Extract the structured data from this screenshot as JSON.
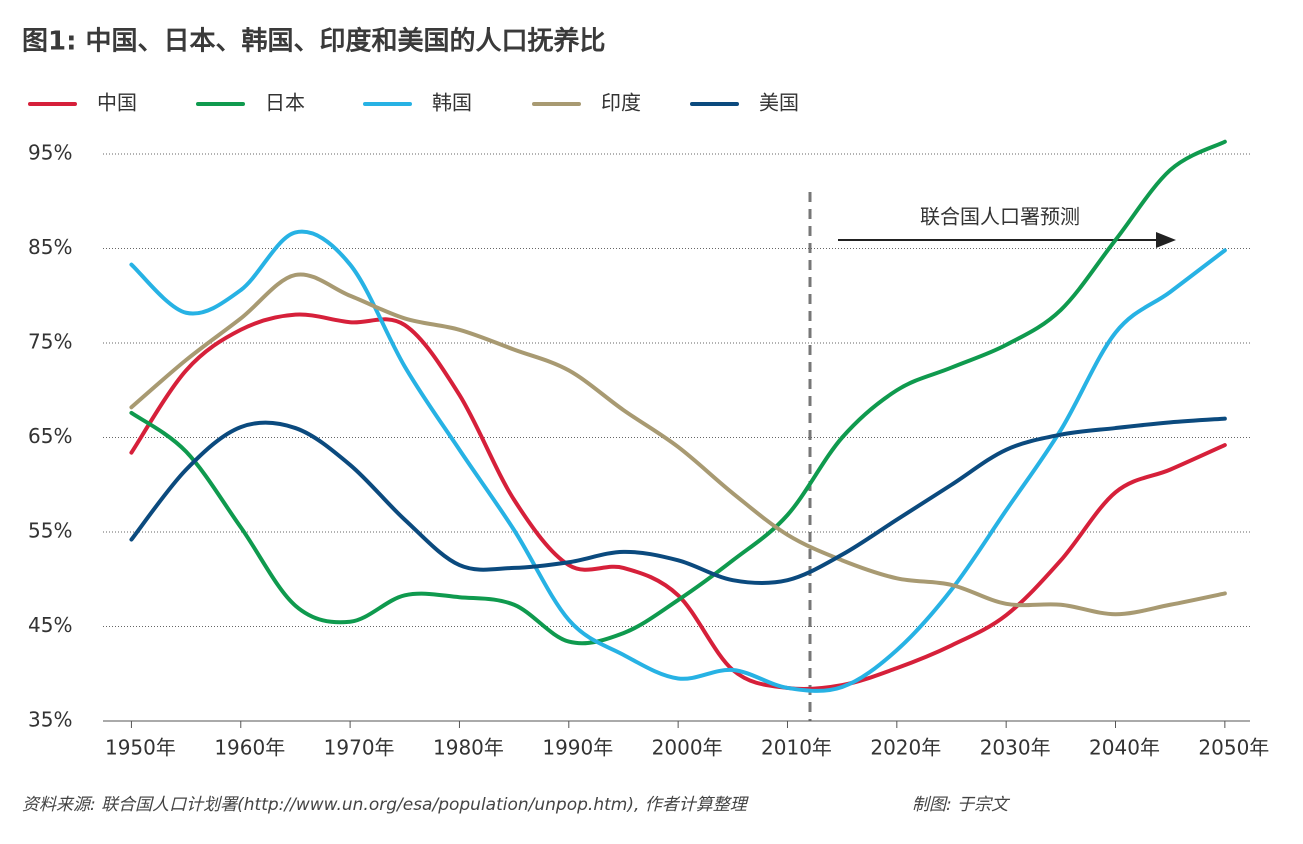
{
  "chart_data": {
    "type": "line",
    "title": "图1: 中国、日本、韩国、印度和美国的人口抚养比",
    "annotation": "联合国人口署预测",
    "source": "资料来源: 联合国人口计划署(http://www.un.org/esa/population/unpop.htm), 作者计算整理",
    "credit": "制图: 于宗文",
    "x": [
      1950,
      1955,
      1960,
      1965,
      1970,
      1975,
      1980,
      1985,
      1990,
      1995,
      2000,
      2005,
      2010,
      2015,
      2020,
      2025,
      2030,
      2035,
      2040,
      2045,
      2050
    ],
    "xlim": [
      1947.4,
      2052.3
    ],
    "xticks": [
      {
        "value": 1950,
        "label": "1950年"
      },
      {
        "value": 1960,
        "label": "1960年"
      },
      {
        "value": 1970,
        "label": "1970年"
      },
      {
        "value": 1980,
        "label": "1980年"
      },
      {
        "value": 1990,
        "label": "1990年"
      },
      {
        "value": 2000,
        "label": "2000年"
      },
      {
        "value": 2010,
        "label": "2010年"
      },
      {
        "value": 2020,
        "label": "2020年"
      },
      {
        "value": 2030,
        "label": "2030年"
      },
      {
        "value": 2040,
        "label": "2040年"
      },
      {
        "value": 2050,
        "label": "2050年"
      }
    ],
    "ylim": [
      35,
      95
    ],
    "yticks": [
      {
        "value": 35,
        "label": "35%"
      },
      {
        "value": 45,
        "label": "45%"
      },
      {
        "value": 55,
        "label": "55%"
      },
      {
        "value": 65,
        "label": "65%"
      },
      {
        "value": 75,
        "label": "75%"
      },
      {
        "value": 85,
        "label": "85%"
      },
      {
        "value": 95,
        "label": "95%"
      }
    ],
    "grid": true,
    "series": [
      {
        "name": "中国",
        "color": "#d6203a",
        "values": [
          63.4,
          72.1,
          76.4,
          78,
          77.2,
          76.9,
          69.5,
          58.4,
          51.5,
          51.2,
          48.3,
          40.4,
          38.5,
          38.8,
          40.6,
          43,
          46.2,
          52,
          59.2,
          61.6,
          64.2
        ]
      },
      {
        "name": "日本",
        "color": "#0f9a4e",
        "values": [
          67.6,
          63.5,
          55.5,
          47.2,
          45.5,
          48.3,
          48.1,
          47.3,
          43.4,
          44.3,
          47.8,
          52,
          56.8,
          65,
          70,
          72.4,
          74.8,
          78.5,
          85.9,
          93.3,
          96.3
        ]
      },
      {
        "name": "韩国",
        "color": "#27b2e4",
        "values": [
          83.3,
          78.2,
          80.6,
          86.7,
          83.3,
          72.5,
          63.7,
          55.2,
          45.7,
          42,
          39.5,
          40.4,
          38.5,
          38.6,
          42.5,
          48.9,
          57.3,
          65.8,
          76.1,
          80.4,
          84.8
        ]
      },
      {
        "name": "印度",
        "color": "#a89a72",
        "values": [
          68.2,
          73.2,
          77.6,
          82.2,
          80,
          77.6,
          76.4,
          74.3,
          72.1,
          67.9,
          64,
          59.1,
          54.7,
          52,
          50.1,
          49.4,
          47.4,
          47.3,
          46.3,
          47.3,
          48.5
        ]
      },
      {
        "name": "美国",
        "color": "#0b4a7e",
        "values": [
          54.2,
          61.6,
          66.1,
          66,
          62.1,
          56.3,
          51.5,
          51.2,
          51.8,
          52.9,
          52,
          49.9,
          49.9,
          52.6,
          56.3,
          60,
          63.7,
          65.3,
          66,
          66.6,
          67
        ]
      }
    ]
  }
}
